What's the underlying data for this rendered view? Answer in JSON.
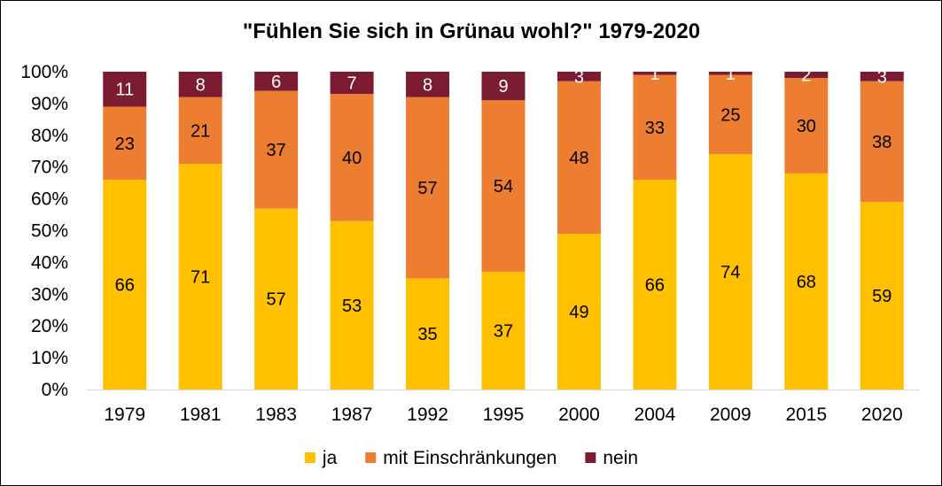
{
  "chart_data": {
    "type": "bar",
    "stacked": true,
    "percent": true,
    "title": "\"Fühlen Sie sich in Grünau wohl?\" 1979-2020",
    "xlabel": "",
    "ylabel": "",
    "ylim": [
      0,
      100
    ],
    "yticks": [
      "0%",
      "10%",
      "20%",
      "30%",
      "40%",
      "50%",
      "60%",
      "70%",
      "80%",
      "90%",
      "100%"
    ],
    "categories": [
      "1979",
      "1981",
      "1983",
      "1987",
      "1992",
      "1995",
      "2000",
      "2004",
      "2009",
      "2015",
      "2020"
    ],
    "series": [
      {
        "name": "ja",
        "color": "#FFC000",
        "label_color": "#000000",
        "values": [
          66,
          71,
          57,
          53,
          35,
          37,
          49,
          66,
          74,
          68,
          59
        ]
      },
      {
        "name": "mit Einschränkungen",
        "color": "#ED7D31",
        "label_color": "#000000",
        "values": [
          23,
          21,
          37,
          40,
          57,
          54,
          48,
          33,
          25,
          30,
          38
        ]
      },
      {
        "name": "nein",
        "color": "#7B1C33",
        "label_color": "#FFFFFF",
        "values": [
          11,
          8,
          6,
          7,
          8,
          9,
          3,
          1,
          1,
          2,
          3
        ]
      }
    ],
    "grid": false,
    "legend": "bottom"
  }
}
